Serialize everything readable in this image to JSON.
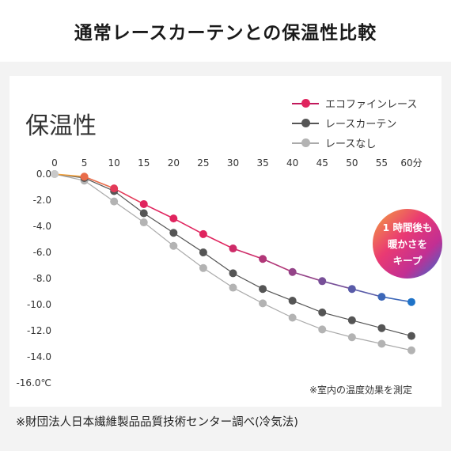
{
  "header": {
    "title": "通常レースカーテンとの保温性比較"
  },
  "badge": {
    "line1": "1 時間後も",
    "line2": "暖かさを",
    "line3": "キープ"
  },
  "note": "※室内の温度効果を測定",
  "footer": "※財団法人日本繊維製品品質技術センター調べ(冷気法)",
  "colors": {
    "eco_start": "#f0a03c",
    "eco_mid": "#e0245e",
    "eco_end": "#1f73c8",
    "standard": "#555555",
    "none": "#b3b3b3"
  },
  "chart_data": {
    "type": "line",
    "title": "保温性",
    "x": [
      0,
      5,
      10,
      15,
      20,
      25,
      30,
      35,
      40,
      45,
      50,
      55,
      60
    ],
    "x_tick_labels": [
      "0",
      "5",
      "10",
      "15",
      "20",
      "25",
      "30",
      "35",
      "40",
      "45",
      "50",
      "55",
      "60分"
    ],
    "y_tick_labels": [
      "0.0",
      "-2.0",
      "-4.0",
      "-6.0",
      "-8.0",
      "-10.0",
      "-12.0",
      "-14.0",
      "-16.0℃"
    ],
    "xlim": [
      0,
      60
    ],
    "ylim": [
      -16,
      0
    ],
    "grid": false,
    "legend_position": "top-right",
    "series": [
      {
        "name": "エコファインレース",
        "values": [
          0,
          -0.2,
          -1.1,
          -2.3,
          -3.4,
          -4.6,
          -5.7,
          -6.5,
          -7.5,
          -8.2,
          -8.8,
          -9.4,
          -9.8
        ]
      },
      {
        "name": "レースカーテン",
        "values": [
          0,
          -0.3,
          -1.3,
          -3.0,
          -4.5,
          -6.0,
          -7.6,
          -8.8,
          -9.7,
          -10.6,
          -11.2,
          -11.8,
          -12.4
        ]
      },
      {
        "name": "レースなし",
        "values": [
          0,
          -0.5,
          -2.1,
          -3.7,
          -5.5,
          -7.2,
          -8.7,
          -9.9,
          -11.0,
          -11.9,
          -12.5,
          -13.0,
          -13.5
        ]
      }
    ]
  }
}
